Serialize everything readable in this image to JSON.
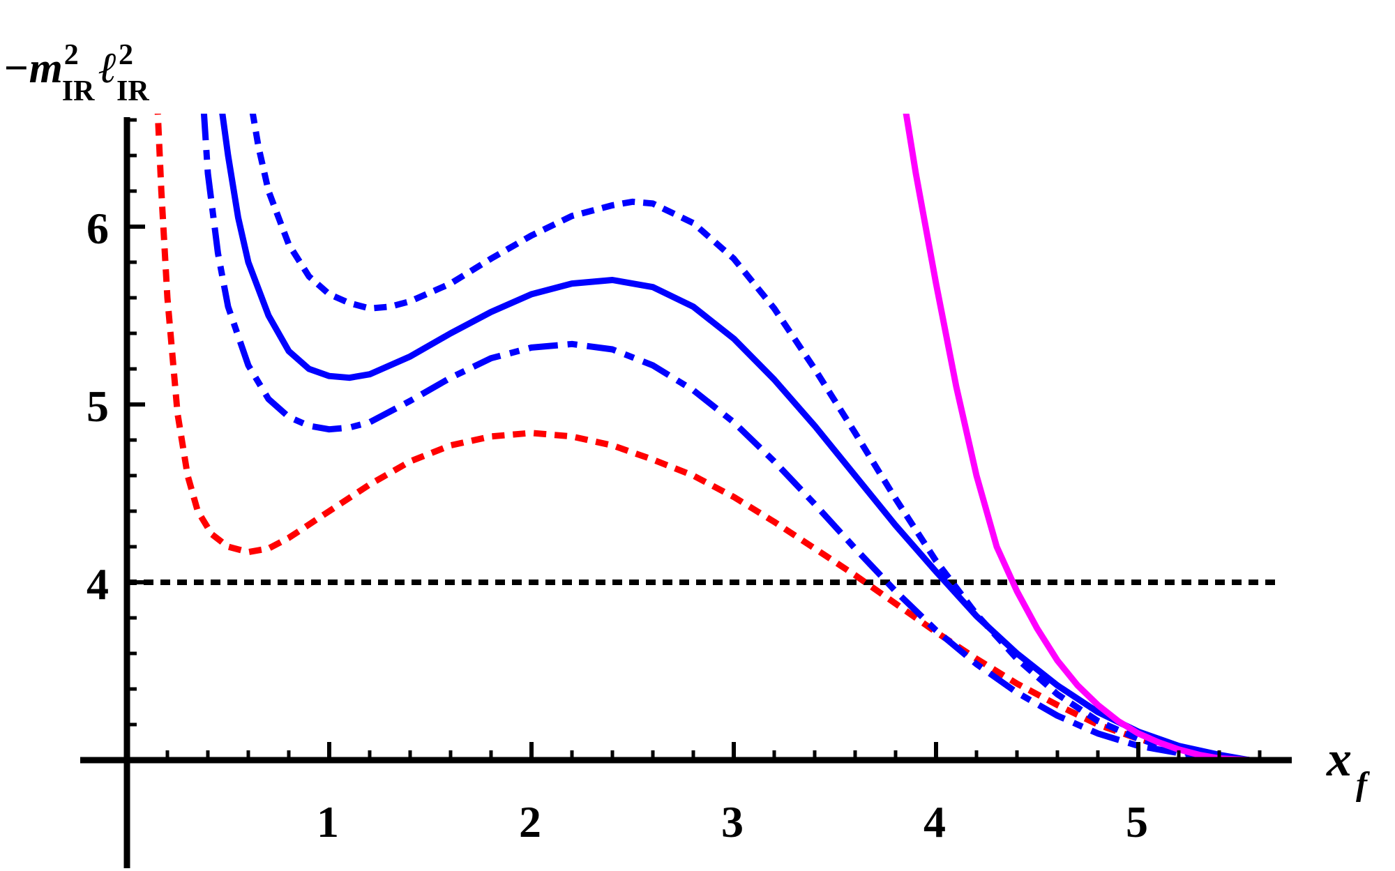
{
  "chart_data": {
    "type": "line",
    "ylabel": {
      "lead": "−m",
      "sup1": "2",
      "sub1": "IR",
      "mid": "ℓ",
      "sup2": "2",
      "sub2": "IR"
    },
    "xlabel": {
      "main": "x",
      "sub": "f"
    },
    "xlim": [
      -0.1,
      5.65
    ],
    "ylim": [
      2.9,
      6.65
    ],
    "x_axis_at": 3.0,
    "y_axis_at": 0.0,
    "x_ticks": [
      {
        "value": 1,
        "label": "1"
      },
      {
        "value": 2,
        "label": "2"
      },
      {
        "value": 3,
        "label": "3"
      },
      {
        "value": 4,
        "label": "4"
      },
      {
        "value": 5,
        "label": "5"
      }
    ],
    "y_ticks": [
      {
        "value": 4,
        "label": "4"
      },
      {
        "value": 5,
        "label": "5"
      },
      {
        "value": 6,
        "label": "6"
      }
    ],
    "minor_tick_step": 0.2,
    "reference_line": {
      "y": 4,
      "xrange": [
        0,
        5.5
      ],
      "color": "#000000",
      "style": "dashed"
    },
    "series": [
      {
        "color": "#ff0000",
        "style": "dotted",
        "points": [
          [
            0.15,
            6.7
          ],
          [
            0.17,
            6.2
          ],
          [
            0.2,
            5.6
          ],
          [
            0.25,
            4.95
          ],
          [
            0.3,
            4.6
          ],
          [
            0.35,
            4.4
          ],
          [
            0.42,
            4.27
          ],
          [
            0.5,
            4.2
          ],
          [
            0.6,
            4.17
          ],
          [
            0.7,
            4.19
          ],
          [
            0.8,
            4.25
          ],
          [
            1.0,
            4.4
          ],
          [
            1.2,
            4.55
          ],
          [
            1.4,
            4.68
          ],
          [
            1.6,
            4.77
          ],
          [
            1.8,
            4.82
          ],
          [
            2.0,
            4.84
          ],
          [
            2.2,
            4.82
          ],
          [
            2.4,
            4.77
          ],
          [
            2.6,
            4.69
          ],
          [
            2.8,
            4.6
          ],
          [
            3.0,
            4.48
          ],
          [
            3.2,
            4.34
          ],
          [
            3.4,
            4.19
          ],
          [
            3.6,
            4.04
          ],
          [
            3.8,
            3.88
          ],
          [
            4.0,
            3.72
          ],
          [
            4.2,
            3.57
          ],
          [
            4.4,
            3.43
          ],
          [
            4.6,
            3.31
          ],
          [
            4.8,
            3.2
          ],
          [
            5.0,
            3.12
          ],
          [
            5.2,
            3.06
          ],
          [
            5.4,
            3.02
          ],
          [
            5.55,
            3.0
          ]
        ]
      },
      {
        "color": "#0000ff",
        "style": "dash-dot",
        "points": [
          [
            0.38,
            6.65
          ],
          [
            0.4,
            6.3
          ],
          [
            0.45,
            5.85
          ],
          [
            0.5,
            5.55
          ],
          [
            0.6,
            5.22
          ],
          [
            0.7,
            5.03
          ],
          [
            0.8,
            4.93
          ],
          [
            0.9,
            4.88
          ],
          [
            1.0,
            4.86
          ],
          [
            1.1,
            4.87
          ],
          [
            1.2,
            4.9
          ],
          [
            1.4,
            5.02
          ],
          [
            1.6,
            5.15
          ],
          [
            1.8,
            5.26
          ],
          [
            2.0,
            5.32
          ],
          [
            2.2,
            5.34
          ],
          [
            2.4,
            5.31
          ],
          [
            2.6,
            5.22
          ],
          [
            2.8,
            5.08
          ],
          [
            3.0,
            4.9
          ],
          [
            3.2,
            4.68
          ],
          [
            3.4,
            4.44
          ],
          [
            3.6,
            4.19
          ],
          [
            3.8,
            3.95
          ],
          [
            4.0,
            3.73
          ],
          [
            4.2,
            3.54
          ],
          [
            4.4,
            3.38
          ],
          [
            4.6,
            3.25
          ],
          [
            4.8,
            3.15
          ],
          [
            5.0,
            3.08
          ],
          [
            5.2,
            3.04
          ],
          [
            5.4,
            3.01
          ],
          [
            5.55,
            3.0
          ]
        ]
      },
      {
        "color": "#0000ff",
        "style": "solid",
        "points": [
          [
            0.47,
            6.65
          ],
          [
            0.5,
            6.4
          ],
          [
            0.55,
            6.05
          ],
          [
            0.6,
            5.8
          ],
          [
            0.7,
            5.5
          ],
          [
            0.8,
            5.3
          ],
          [
            0.9,
            5.2
          ],
          [
            1.0,
            5.16
          ],
          [
            1.1,
            5.15
          ],
          [
            1.2,
            5.17
          ],
          [
            1.4,
            5.27
          ],
          [
            1.6,
            5.4
          ],
          [
            1.8,
            5.52
          ],
          [
            2.0,
            5.62
          ],
          [
            2.2,
            5.68
          ],
          [
            2.4,
            5.7
          ],
          [
            2.6,
            5.66
          ],
          [
            2.8,
            5.55
          ],
          [
            3.0,
            5.37
          ],
          [
            3.2,
            5.14
          ],
          [
            3.4,
            4.88
          ],
          [
            3.6,
            4.6
          ],
          [
            3.8,
            4.32
          ],
          [
            4.0,
            4.06
          ],
          [
            4.2,
            3.81
          ],
          [
            4.4,
            3.6
          ],
          [
            4.6,
            3.42
          ],
          [
            4.8,
            3.27
          ],
          [
            5.0,
            3.16
          ],
          [
            5.2,
            3.08
          ],
          [
            5.4,
            3.03
          ],
          [
            5.55,
            3.0
          ]
        ]
      },
      {
        "color": "#0000ff",
        "style": "dotted",
        "points": [
          [
            0.62,
            6.65
          ],
          [
            0.65,
            6.45
          ],
          [
            0.7,
            6.2
          ],
          [
            0.8,
            5.9
          ],
          [
            0.9,
            5.72
          ],
          [
            1.0,
            5.62
          ],
          [
            1.1,
            5.57
          ],
          [
            1.2,
            5.54
          ],
          [
            1.3,
            5.55
          ],
          [
            1.4,
            5.58
          ],
          [
            1.6,
            5.68
          ],
          [
            1.8,
            5.82
          ],
          [
            2.0,
            5.95
          ],
          [
            2.2,
            6.06
          ],
          [
            2.4,
            6.12
          ],
          [
            2.5,
            6.14
          ],
          [
            2.6,
            6.13
          ],
          [
            2.8,
            6.02
          ],
          [
            3.0,
            5.82
          ],
          [
            3.2,
            5.54
          ],
          [
            3.4,
            5.2
          ],
          [
            3.6,
            4.84
          ],
          [
            3.8,
            4.47
          ],
          [
            4.0,
            4.12
          ],
          [
            4.2,
            3.82
          ],
          [
            4.4,
            3.57
          ],
          [
            4.6,
            3.37
          ],
          [
            4.8,
            3.22
          ],
          [
            5.0,
            3.12
          ],
          [
            5.2,
            3.05
          ],
          [
            5.4,
            3.01
          ],
          [
            5.55,
            3.0
          ]
        ]
      },
      {
        "color": "#ff00ff",
        "style": "solid",
        "points": [
          [
            3.85,
            6.65
          ],
          [
            3.9,
            6.3
          ],
          [
            4.0,
            5.68
          ],
          [
            4.1,
            5.1
          ],
          [
            4.2,
            4.6
          ],
          [
            4.3,
            4.2
          ],
          [
            4.4,
            3.95
          ],
          [
            4.5,
            3.74
          ],
          [
            4.6,
            3.56
          ],
          [
            4.7,
            3.42
          ],
          [
            4.8,
            3.31
          ],
          [
            4.9,
            3.22
          ],
          [
            5.0,
            3.15
          ],
          [
            5.1,
            3.1
          ],
          [
            5.2,
            3.06
          ],
          [
            5.3,
            3.03
          ],
          [
            5.4,
            3.01
          ],
          [
            5.55,
            3.0
          ]
        ]
      }
    ]
  }
}
